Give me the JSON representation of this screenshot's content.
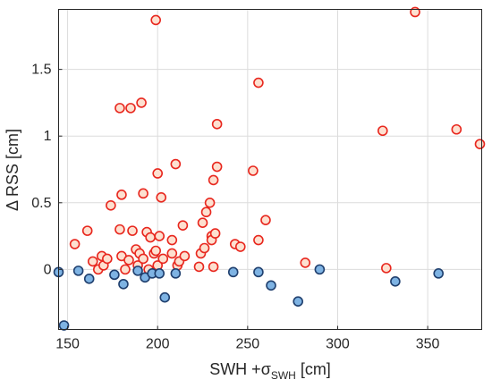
{
  "chart_data": {
    "type": "scatter",
    "xlabel_main": "SWH +σ",
    "xlabel_sub": "SWH",
    "xlabel_unit": " [cm]",
    "ylabel": "Δ RSS [cm]",
    "xlim": [
      145,
      380
    ],
    "ylim": [
      -0.45,
      1.95
    ],
    "xticks": [
      150,
      200,
      250,
      300,
      350
    ],
    "yticks": [
      0,
      0.5,
      1,
      1.5
    ],
    "ytick_labels": [
      "0",
      "0.5",
      "1",
      "1.5"
    ],
    "grid": true,
    "series": [
      {
        "color": "#e8271e",
        "fill": "#fde0d0",
        "points": [
          [
            154,
            0.19
          ],
          [
            161,
            0.29
          ],
          [
            164,
            0.06
          ],
          [
            167,
            0.0
          ],
          [
            169,
            0.1
          ],
          [
            170,
            0.03
          ],
          [
            172,
            0.08
          ],
          [
            174,
            0.48
          ],
          [
            179,
            0.3
          ],
          [
            179,
            1.21
          ],
          [
            180,
            0.56
          ],
          [
            180,
            0.1
          ],
          [
            182,
            0.0
          ],
          [
            184,
            0.07
          ],
          [
            185,
            1.21
          ],
          [
            186,
            0.29
          ],
          [
            188,
            0.15
          ],
          [
            189,
            0.03
          ],
          [
            190,
            0.12
          ],
          [
            191,
            1.25
          ],
          [
            192,
            0.57
          ],
          [
            192,
            0.08
          ],
          [
            194,
            0.28
          ],
          [
            195,
            0.0
          ],
          [
            196,
            0.24
          ],
          [
            198,
            0.12
          ],
          [
            199,
            1.87
          ],
          [
            199,
            0.14
          ],
          [
            200,
            0.03
          ],
          [
            200,
            0.72
          ],
          [
            201,
            0.25
          ],
          [
            202,
            0.54
          ],
          [
            203,
            0.08
          ],
          [
            208,
            0.22
          ],
          [
            208,
            0.12
          ],
          [
            210,
            0.79
          ],
          [
            211,
            0.03
          ],
          [
            212,
            0.06
          ],
          [
            214,
            0.33
          ],
          [
            215,
            0.1
          ],
          [
            223,
            0.02
          ],
          [
            224,
            0.12
          ],
          [
            225,
            0.35
          ],
          [
            226,
            0.16
          ],
          [
            227,
            0.43
          ],
          [
            229,
            0.5
          ],
          [
            230,
            0.25
          ],
          [
            230,
            0.22
          ],
          [
            231,
            0.67
          ],
          [
            231,
            0.02
          ],
          [
            232,
            0.27
          ],
          [
            233,
            1.09
          ],
          [
            233,
            0.77
          ],
          [
            243,
            0.19
          ],
          [
            246,
            0.17
          ],
          [
            253,
            0.74
          ],
          [
            256,
            0.22
          ],
          [
            256,
            1.4
          ],
          [
            260,
            0.37
          ],
          [
            282,
            0.05
          ],
          [
            325,
            1.04
          ],
          [
            327,
            0.01
          ],
          [
            343,
            1.93
          ],
          [
            366,
            1.05
          ],
          [
            379,
            0.94
          ]
        ]
      },
      {
        "color": "#1f3f6e",
        "fill": "#7eb3e3",
        "points": [
          [
            145,
            -0.02
          ],
          [
            148,
            -0.42
          ],
          [
            156,
            -0.01
          ],
          [
            162,
            -0.07
          ],
          [
            176,
            -0.04
          ],
          [
            181,
            -0.11
          ],
          [
            189,
            -0.01
          ],
          [
            193,
            -0.06
          ],
          [
            197,
            -0.03
          ],
          [
            201,
            -0.03
          ],
          [
            204,
            -0.21
          ],
          [
            210,
            -0.03
          ],
          [
            242,
            -0.02
          ],
          [
            256,
            -0.02
          ],
          [
            263,
            -0.12
          ],
          [
            278,
            -0.24
          ],
          [
            290,
            -0.0
          ],
          [
            332,
            -0.09
          ],
          [
            356,
            -0.03
          ]
        ]
      }
    ]
  }
}
